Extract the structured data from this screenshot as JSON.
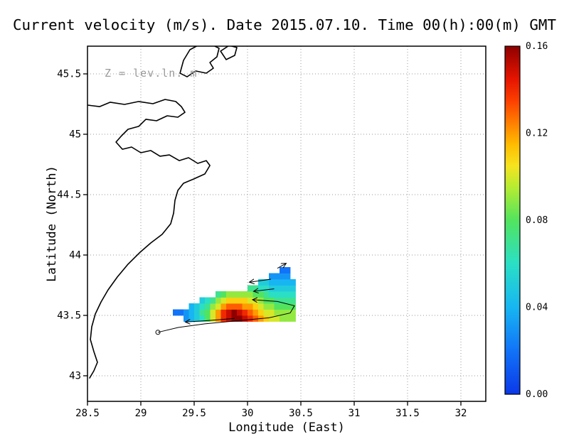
{
  "chart_data": {
    "type": "heatmap",
    "title": "Current velocity (m/s). Date 2015.07.10. Time 00(h):00(m) GMT",
    "xlabel": "Longitude (East)",
    "ylabel": "Latitude (North)",
    "annotation": "Z = lev.ln. m",
    "grid": true,
    "legend_position": "right-colorbar",
    "x_range": [
      28.5,
      32.2333
    ],
    "y_range": [
      42.7882,
      45.7294
    ],
    "x_ticks": [
      28.5,
      29,
      29.5,
      30,
      30.5,
      31,
      31.5,
      32
    ],
    "x_tick_labels": [
      "28.5",
      "29",
      "29.5",
      "30",
      "30.5",
      "31",
      "31.5",
      "32"
    ],
    "y_ticks": [
      43,
      43.5,
      44,
      44.5,
      45,
      45.5
    ],
    "y_tick_labels": [
      "43",
      "43.5",
      "44",
      "44.5",
      "45",
      "45.5"
    ],
    "colorbar": {
      "min": 0,
      "max": 0.16,
      "units": "m/s",
      "ticks": [
        0,
        0.04,
        0.08,
        0.12,
        0.16
      ],
      "tick_labels": [
        "0.00",
        "0.04",
        "0.08",
        "0.12",
        "0.16"
      ],
      "colormap": [
        [
          0.0,
          "#0b38e8"
        ],
        [
          0.02,
          "#1173f8"
        ],
        [
          0.04,
          "#17b6f2"
        ],
        [
          0.06,
          "#2adfc5"
        ],
        [
          0.08,
          "#52e45e"
        ],
        [
          0.095,
          "#b5ec32"
        ],
        [
          0.105,
          "#f6e41f"
        ],
        [
          0.115,
          "#ffbb00"
        ],
        [
          0.125,
          "#ff7d00"
        ],
        [
          0.135,
          "#fc3f00"
        ],
        [
          0.145,
          "#e51400"
        ],
        [
          0.16,
          "#8e0000"
        ]
      ]
    },
    "velocity_field": {
      "units": "m/s",
      "lon_start": 29.3,
      "lat_start": 43.45,
      "dlon": 0.05,
      "dlat": 0.05,
      "values": [
        [
          null,
          null,
          0.03,
          0.04,
          0.05,
          0.06,
          0.08,
          0.1,
          0.12,
          0.14,
          0.15,
          0.16,
          0.16,
          0.15,
          0.14,
          0.13,
          0.12,
          0.11,
          0.1,
          0.1,
          0.09,
          0.09,
          0.09
        ],
        [
          0.02,
          0.02,
          0.03,
          0.04,
          0.05,
          0.07,
          0.08,
          0.1,
          0.12,
          0.14,
          0.15,
          0.16,
          0.15,
          0.14,
          0.13,
          0.12,
          0.11,
          0.1,
          0.1,
          0.09,
          0.09,
          0.09,
          0.09
        ],
        [
          null,
          null,
          null,
          0.04,
          0.05,
          0.06,
          0.07,
          0.09,
          0.1,
          0.12,
          0.13,
          0.13,
          0.13,
          0.12,
          0.12,
          0.11,
          0.1,
          0.09,
          0.09,
          0.08,
          0.08,
          0.08,
          0.08
        ],
        [
          null,
          null,
          null,
          null,
          null,
          0.05,
          0.06,
          0.07,
          0.09,
          0.1,
          0.11,
          0.11,
          0.11,
          0.11,
          0.1,
          0.1,
          0.09,
          0.08,
          0.08,
          0.07,
          0.07,
          0.07,
          0.07
        ],
        [
          null,
          null,
          null,
          null,
          null,
          null,
          null,
          null,
          0.07,
          0.08,
          0.09,
          0.09,
          0.09,
          0.09,
          0.09,
          0.08,
          0.08,
          0.07,
          0.06,
          0.06,
          0.06,
          0.06,
          0.06
        ],
        [
          null,
          null,
          null,
          null,
          null,
          null,
          null,
          null,
          null,
          null,
          null,
          null,
          null,
          null,
          0.07,
          0.07,
          0.06,
          0.06,
          0.05,
          0.05,
          0.05,
          0.05,
          0.05
        ],
        [
          null,
          null,
          null,
          null,
          null,
          null,
          null,
          null,
          null,
          null,
          null,
          null,
          null,
          null,
          null,
          null,
          0.05,
          0.05,
          0.04,
          0.04,
          0.04,
          0.04,
          0.04
        ],
        [
          null,
          null,
          null,
          null,
          null,
          null,
          null,
          null,
          null,
          null,
          null,
          null,
          null,
          null,
          null,
          null,
          null,
          null,
          0.03,
          0.03,
          0.03,
          0.03,
          null
        ],
        [
          null,
          null,
          null,
          null,
          null,
          null,
          null,
          null,
          null,
          null,
          null,
          null,
          null,
          null,
          null,
          null,
          null,
          null,
          null,
          null,
          0.02,
          0.02,
          null
        ]
      ]
    },
    "coastline": [
      [
        [
          28.5,
          45.241
        ],
        [
          28.613,
          45.229
        ],
        [
          28.713,
          45.265
        ],
        [
          28.847,
          45.247
        ],
        [
          28.98,
          45.271
        ],
        [
          29.113,
          45.253
        ],
        [
          29.227,
          45.288
        ],
        [
          29.327,
          45.271
        ],
        [
          29.38,
          45.229
        ],
        [
          29.413,
          45.182
        ],
        [
          29.347,
          45.141
        ],
        [
          29.247,
          45.153
        ],
        [
          29.147,
          45.112
        ],
        [
          29.047,
          45.124
        ],
        [
          28.98,
          45.065
        ],
        [
          28.88,
          45.041
        ],
        [
          28.813,
          44.982
        ],
        [
          28.767,
          44.935
        ],
        [
          28.827,
          44.876
        ],
        [
          28.913,
          44.894
        ],
        [
          29.0,
          44.847
        ],
        [
          29.093,
          44.865
        ],
        [
          29.18,
          44.818
        ],
        [
          29.267,
          44.829
        ],
        [
          29.36,
          44.782
        ],
        [
          29.447,
          44.806
        ],
        [
          29.533,
          44.759
        ],
        [
          29.613,
          44.782
        ],
        [
          29.647,
          44.741
        ],
        [
          29.6,
          44.671
        ],
        [
          29.493,
          44.629
        ],
        [
          29.4,
          44.594
        ],
        [
          29.347,
          44.535
        ],
        [
          29.32,
          44.453
        ],
        [
          29.307,
          44.347
        ],
        [
          29.28,
          44.259
        ],
        [
          29.2,
          44.171
        ],
        [
          29.093,
          44.1
        ],
        [
          28.987,
          44.018
        ],
        [
          28.88,
          43.924
        ],
        [
          28.78,
          43.818
        ],
        [
          28.693,
          43.712
        ],
        [
          28.627,
          43.612
        ],
        [
          28.573,
          43.512
        ],
        [
          28.54,
          43.406
        ],
        [
          28.527,
          43.3
        ],
        [
          28.56,
          43.2
        ],
        [
          28.593,
          43.112
        ],
        [
          28.56,
          43.041
        ],
        [
          28.52,
          42.982
        ]
      ],
      [
        [
          29.367,
          45.506
        ],
        [
          29.4,
          45.612
        ],
        [
          29.46,
          45.7
        ],
        [
          29.547,
          45.741
        ],
        [
          29.653,
          45.747
        ],
        [
          29.733,
          45.712
        ],
        [
          29.713,
          45.641
        ],
        [
          29.647,
          45.594
        ],
        [
          29.68,
          45.547
        ],
        [
          29.613,
          45.506
        ],
        [
          29.513,
          45.524
        ],
        [
          29.433,
          45.476
        ],
        [
          29.367,
          45.506
        ]
      ],
      [
        [
          29.747,
          45.688
        ],
        [
          29.827,
          45.735
        ],
        [
          29.9,
          45.718
        ],
        [
          29.88,
          45.653
        ],
        [
          29.8,
          45.618
        ],
        [
          29.747,
          45.688
        ]
      ]
    ],
    "trajectories": [
      {
        "start_marker": true,
        "points": [
          [
            29.16,
            43.36
          ],
          [
            29.35,
            43.4
          ],
          [
            29.6,
            43.43
          ],
          [
            29.9,
            43.455
          ],
          [
            30.2,
            43.48
          ],
          [
            30.4,
            43.52
          ],
          [
            30.44,
            43.58
          ],
          [
            30.28,
            43.615
          ],
          [
            30.05,
            43.63
          ]
        ]
      },
      {
        "start_marker": false,
        "points": [
          [
            29.88,
            43.475
          ],
          [
            29.6,
            43.455
          ],
          [
            29.42,
            43.445
          ]
        ]
      }
    ],
    "arrows": [
      {
        "from": [
          30.22,
          43.8
        ],
        "to": [
          30.02,
          43.775
        ]
      },
      {
        "from": [
          30.25,
          43.72
        ],
        "to": [
          30.06,
          43.7
        ]
      },
      {
        "from": [
          30.28,
          43.89
        ],
        "to": [
          30.36,
          43.93
        ]
      }
    ]
  }
}
